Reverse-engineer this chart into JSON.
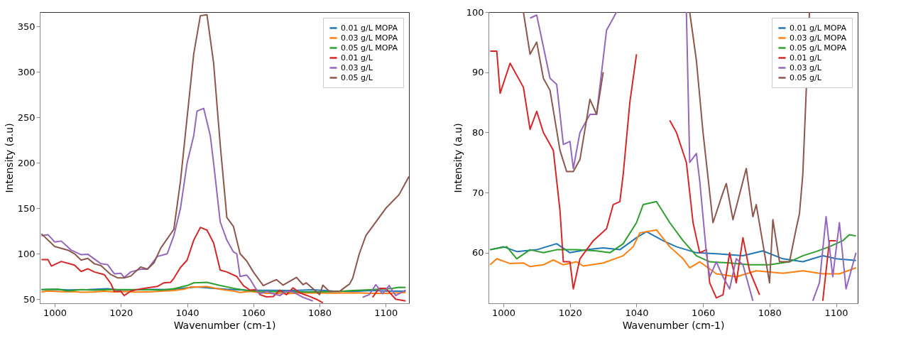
{
  "chart_data": [
    {
      "type": "line",
      "xlabel": "Wavenumber (cm-1)",
      "ylabel": "Intensity (a.u)",
      "xlim": [
        995.5,
        1107
      ],
      "ylim": [
        45.5,
        366
      ],
      "xticks": [
        1000,
        1020,
        1040,
        1060,
        1080,
        1100
      ],
      "yticks": [
        50,
        100,
        150,
        200,
        250,
        300,
        350
      ],
      "grid": false,
      "legend": "top right",
      "marker": "none",
      "line_style": "solid",
      "series": [
        {
          "name": "0.01 g/L MOPA",
          "color": "#1f77b4",
          "x": [
            996,
            1000,
            1004,
            1010,
            1016,
            1020,
            1025,
            1030,
            1035,
            1040,
            1043,
            1048,
            1052,
            1058,
            1065,
            1072,
            1078,
            1084,
            1090,
            1096,
            1100,
            1106
          ],
          "values": [
            60.5,
            61,
            60.2,
            60.5,
            61.5,
            60,
            60.5,
            60.8,
            60.5,
            62.5,
            63.5,
            62,
            61,
            60,
            59.8,
            59.5,
            60.3,
            59,
            58.5,
            59.5,
            59,
            58.7
          ]
        },
        {
          "name": "0.03 g/L MOPA",
          "color": "#ff7f0e",
          "x": [
            996,
            998,
            1002,
            1006,
            1008,
            1012,
            1015,
            1018,
            1022,
            1024,
            1030,
            1036,
            1039,
            1041,
            1046,
            1050,
            1054,
            1056,
            1059,
            1064,
            1070,
            1076,
            1084,
            1090,
            1096,
            1101,
            1106
          ],
          "values": [
            58,
            59,
            58.2,
            58.3,
            57.7,
            58,
            58.8,
            58,
            58.5,
            57.8,
            58.3,
            59.5,
            61,
            63.3,
            63.8,
            61,
            59,
            57.5,
            58.5,
            56.5,
            56,
            57,
            56.6,
            57,
            56.5,
            56.5,
            57.5
          ]
        },
        {
          "name": "0.05 g/L MOPA",
          "color": "#2ca02c",
          "x": [
            996,
            1001,
            1004,
            1008,
            1012,
            1016,
            1022,
            1028,
            1032,
            1036,
            1040,
            1042,
            1046,
            1050,
            1054,
            1058,
            1062,
            1068,
            1074,
            1080,
            1086,
            1090,
            1094,
            1098,
            1102,
            1104,
            1106
          ],
          "values": [
            60.5,
            61,
            59,
            60.5,
            60,
            60.5,
            60.5,
            60.3,
            60,
            61.5,
            65,
            68,
            68.5,
            65,
            62,
            59.5,
            58.5,
            58.3,
            58,
            58,
            58.5,
            59.5,
            60.2,
            61,
            62,
            63,
            62.8
          ]
        },
        {
          "name": "0.01 g/L",
          "color": "#d62728",
          "x": [
            996,
            998,
            999,
            1002,
            1006,
            1008,
            1010,
            1012,
            1015,
            1017,
            1018,
            1020,
            1021,
            1023,
            1027,
            1031,
            1033,
            1035,
            1036,
            1038,
            1040,
            1042,
            1044,
            1046,
            1048,
            1050,
            1052,
            1055,
            1057,
            1059,
            1061,
            1062,
            1064,
            1066,
            1068,
            1070,
            1072,
            1074,
            1077,
            1079,
            1081,
            1088,
            1096,
            1098,
            1100,
            1103,
            1106
          ],
          "values": [
            93.5,
            93.5,
            86.5,
            91.5,
            87.5,
            80.5,
            83.5,
            80,
            77,
            67,
            58.5,
            58.5,
            54,
            59,
            62,
            64,
            68,
            68.5,
            73,
            85,
            93,
            115,
            129,
            126,
            112,
            82,
            80,
            75,
            65,
            60,
            60.5,
            55,
            52.5,
            53,
            60,
            55,
            62.5,
            57,
            53,
            50,
            46,
            null,
            52,
            62,
            62,
            50,
            48
          ]
        },
        {
          "name": "0.03 g/L",
          "color": "#9467bd",
          "x": [
            996,
            998,
            1000,
            1002,
            1005,
            1008,
            1010,
            1014,
            1016,
            1018,
            1020,
            1021,
            1023,
            1026,
            1028,
            1031,
            1034,
            1036,
            1038,
            1040,
            1042,
            1043,
            1045,
            1047,
            1048,
            1050,
            1052,
            1054,
            1055,
            1056,
            1058,
            1059,
            1061,
            1062,
            1064,
            1066,
            1068,
            1070,
            1072,
            1075,
            1078,
            1085,
            1093,
            1095,
            1097,
            1099,
            1101,
            1103,
            1106
          ],
          "values": [
            120,
            121,
            113,
            114,
            104,
            99,
            99.5,
            89,
            88,
            78,
            78.5,
            74,
            80,
            83,
            83,
            97,
            100,
            120,
            150,
            200,
            230,
            257,
            260,
            230,
            200,
            135,
            115,
            102,
            100,
            75,
            76.5,
            72,
            60,
            56,
            58.5,
            56,
            54,
            59,
            58,
            52,
            48,
            null,
            52,
            55,
            66,
            56,
            65,
            54,
            60
          ]
        },
        {
          "name": "0.05 g/L",
          "color": "#8c564b",
          "x": [
            996,
            1000,
            1004,
            1006,
            1008,
            1010,
            1012,
            1014,
            1017,
            1019,
            1021,
            1023,
            1026,
            1028,
            1030,
            1032,
            1036,
            1038,
            1040,
            1042,
            1044,
            1046,
            1048,
            1050,
            1052,
            1054,
            1056,
            1058,
            1060,
            1063,
            1066,
            1067,
            1069,
            1073,
            1075,
            1076,
            1080,
            1081,
            1083,
            1086,
            1088,
            1089,
            1090,
            1092,
            1094,
            1096,
            1098,
            1100,
            1104,
            1107
          ],
          "values": [
            122,
            108,
            104,
            100,
            93,
            95,
            89,
            87,
            77,
            73.5,
            73.5,
            75.5,
            85.5,
            83,
            90,
            106,
            127,
            180,
            250,
            320,
            362,
            363,
            310,
            220,
            140,
            130,
            100,
            92,
            80,
            65,
            70,
            71.5,
            65.5,
            74,
            66,
            68,
            55,
            65.5,
            58.5,
            58.5,
            64,
            66.5,
            73,
            100,
            120,
            130,
            140,
            150,
            165,
            185
          ]
        }
      ]
    },
    {
      "type": "line",
      "xlabel": "Wavenumber (cm-1)",
      "ylabel": "Intensity (a.u)",
      "xlim": [
        995.5,
        1106.5
      ],
      "ylim": [
        51.6,
        100
      ],
      "xticks": [
        1000,
        1020,
        1040,
        1060,
        1080,
        1100
      ],
      "yticks": [
        60,
        70,
        80,
        90,
        100
      ],
      "grid": false,
      "legend": "top right",
      "marker": "none",
      "line_style": "solid",
      "series": [
        {
          "name": "0.01 g/L MOPA",
          "color": "#1f77b4",
          "x": [
            996,
            1000,
            1004,
            1010,
            1016,
            1020,
            1025,
            1030,
            1035,
            1040,
            1043,
            1048,
            1052,
            1058,
            1065,
            1072,
            1078,
            1084,
            1090,
            1096,
            1100,
            1106
          ],
          "values": [
            60.5,
            61,
            60.2,
            60.5,
            61.5,
            60,
            60.5,
            60.8,
            60.5,
            62.5,
            63.5,
            62,
            61,
            60,
            59.8,
            59.5,
            60.3,
            59,
            58.5,
            59.5,
            59,
            58.7
          ]
        },
        {
          "name": "0.03 g/L MOPA",
          "color": "#ff7f0e",
          "x": [
            996,
            998,
            1002,
            1006,
            1008,
            1012,
            1015,
            1018,
            1022,
            1024,
            1030,
            1036,
            1039,
            1041,
            1046,
            1050,
            1054,
            1056,
            1059,
            1064,
            1070,
            1076,
            1084,
            1090,
            1096,
            1101,
            1106
          ],
          "values": [
            58,
            59,
            58.2,
            58.3,
            57.7,
            58,
            58.8,
            58,
            58.5,
            57.8,
            58.3,
            59.5,
            61,
            63.3,
            63.8,
            61,
            59,
            57.5,
            58.5,
            56.5,
            56,
            57,
            56.6,
            57,
            56.5,
            56.5,
            57.5
          ]
        },
        {
          "name": "0.05 g/L MOPA",
          "color": "#2ca02c",
          "x": [
            996,
            1001,
            1004,
            1008,
            1012,
            1016,
            1022,
            1028,
            1032,
            1036,
            1040,
            1042,
            1046,
            1050,
            1054,
            1058,
            1062,
            1068,
            1074,
            1080,
            1086,
            1090,
            1094,
            1098,
            1102,
            1104,
            1106
          ],
          "values": [
            60.5,
            61,
            59,
            60.5,
            60,
            60.5,
            60.5,
            60.3,
            60,
            61.5,
            65,
            68,
            68.5,
            65,
            62,
            59.5,
            58.5,
            58.3,
            58,
            58,
            58.5,
            59.5,
            60.2,
            61,
            62,
            63,
            62.8
          ]
        },
        {
          "name": "0.01 g/L",
          "color": "#d62728",
          "x": [
            996,
            998,
            999,
            1002,
            1006,
            1008,
            1010,
            1012,
            1015,
            1017,
            1018,
            1020,
            1021,
            1023,
            1027,
            1031,
            1033,
            1035,
            1036,
            1038,
            1040,
            1042,
            1044,
            1046,
            1048,
            1050,
            1052,
            1055,
            1057,
            1059,
            1061,
            1062,
            1064,
            1066,
            1068,
            1070,
            1072,
            1074,
            1077,
            1079,
            1081,
            1088,
            1096,
            1098,
            1100
          ],
          "values": [
            93.5,
            93.5,
            86.5,
            91.5,
            87.5,
            80.5,
            83.5,
            80,
            77,
            67,
            58.5,
            58.5,
            54,
            59,
            62,
            64,
            68,
            68.5,
            73,
            85,
            93,
            null,
            null,
            null,
            null,
            82,
            80,
            75,
            65,
            60,
            60.5,
            55,
            52.5,
            53,
            60,
            55,
            62.5,
            57,
            53,
            null,
            null,
            null,
            52,
            62,
            62
          ]
        },
        {
          "name": "0.03 g/L",
          "color": "#9467bd",
          "x": [
            1008,
            1010,
            1014,
            1016,
            1018,
            1020,
            1021,
            1023,
            1026,
            1028,
            1031,
            1034,
            1036,
            1038,
            1040,
            1042,
            1043,
            1045,
            1047,
            1048,
            1050,
            1052,
            1054,
            1055,
            1056,
            1058,
            1059,
            1061,
            1062,
            1064,
            1066,
            1068,
            1070,
            1072,
            1075,
            1078,
            1085,
            1093,
            1095,
            1097,
            1099,
            1101,
            1103,
            1106
          ],
          "values": [
            99,
            99.5,
            89,
            88,
            78,
            78.5,
            74,
            80,
            83,
            83,
            97,
            100,
            null,
            null,
            null,
            null,
            null,
            null,
            null,
            null,
            null,
            null,
            null,
            100,
            75,
            76.5,
            72,
            60,
            56,
            58.5,
            56,
            54,
            59,
            58,
            52,
            null,
            null,
            52,
            55,
            66,
            56,
            65,
            54,
            60
          ]
        },
        {
          "name": "0.05 g/L",
          "color": "#8c564b",
          "x": [
            1006,
            1008,
            1010,
            1012,
            1014,
            1017,
            1019,
            1021,
            1023,
            1026,
            1028,
            1030,
            1032,
            1036,
            1038,
            1040,
            1042,
            1044,
            1046,
            1048,
            1050,
            1052,
            1054,
            1056,
            1058,
            1060,
            1063,
            1066,
            1067,
            1069,
            1073,
            1075,
            1076,
            1080,
            1081,
            1083,
            1086,
            1088,
            1089,
            1090,
            1092
          ],
          "values": [
            100,
            93,
            95,
            89,
            87,
            77,
            73.5,
            73.5,
            75.5,
            85.5,
            83,
            90,
            null,
            null,
            null,
            null,
            null,
            null,
            null,
            null,
            null,
            null,
            null,
            100,
            92,
            80,
            65,
            70,
            71.5,
            65.5,
            74,
            66,
            68,
            55,
            65.5,
            58.5,
            58.5,
            64,
            66.5,
            73,
            100
          ]
        }
      ]
    }
  ]
}
